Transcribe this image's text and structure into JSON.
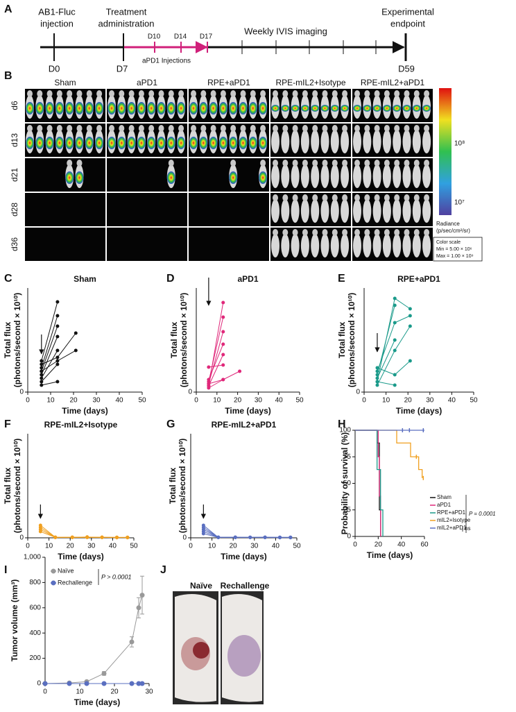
{
  "timeline": {
    "label": "A",
    "injection": [
      "AB1-Fluc",
      "injection"
    ],
    "treatment": [
      "Treatment",
      "administration"
    ],
    "d10": "D10",
    "d14": "D14",
    "d17": "D17",
    "injections": "aPD1 Injections",
    "imaging": "Weekly IVIS imaging",
    "endpoint": [
      "Experimental",
      "endpoint"
    ],
    "d0": "D0",
    "d7": "D7",
    "d59": "D59"
  },
  "imaging": {
    "label": "B",
    "columns": [
      "Sham",
      "aPD1",
      "RPE+aPD1",
      "RPE-mIL2+Isotype",
      "RPE-mIL2+aPD1"
    ],
    "rows": [
      "d6",
      "d13",
      "d21",
      "d28",
      "d36"
    ],
    "colorbar_ticks": [
      "10⁸",
      "10⁷"
    ],
    "radiance": [
      "Radiance",
      "(p/sec/cm²/sr)"
    ],
    "color_scale": [
      "Color scale",
      "Min = 5.00 × 10⁶",
      "Max = 1.00 × 10⁹"
    ]
  },
  "chart_data": [
    {
      "label": "C",
      "type": "line",
      "title": "Sham",
      "ylabel": [
        "Total flux",
        "(photons/second × 10¹⁰)"
      ],
      "xlabel": "Time (days)",
      "x": [
        6,
        13,
        21
      ],
      "xlim": [
        0,
        50
      ],
      "xticks": [
        0,
        10,
        20,
        30,
        40,
        50
      ],
      "ylim": [
        0,
        3
      ],
      "yticks": [
        0
      ],
      "arrow_x": 6,
      "series": [
        {
          "color": "#111111",
          "values": [
            0.2,
            0.3,
            null
          ]
        },
        {
          "color": "#111111",
          "values": [
            0.3,
            0.8,
            null
          ]
        },
        {
          "color": "#111111",
          "values": [
            0.4,
            1.2,
            null
          ]
        },
        {
          "color": "#111111",
          "values": [
            0.5,
            1.6,
            null
          ]
        },
        {
          "color": "#111111",
          "values": [
            0.6,
            1.9,
            null
          ]
        },
        {
          "color": "#111111",
          "values": [
            0.7,
            2.2,
            null
          ]
        },
        {
          "color": "#111111",
          "values": [
            0.9,
            2.6,
            null
          ]
        },
        {
          "color": "#111111",
          "values": [
            0.8,
            1.0,
            1.7
          ]
        },
        {
          "color": "#111111",
          "values": [
            0.6,
            0.9,
            1.2
          ]
        }
      ]
    },
    {
      "label": "D",
      "type": "line",
      "title": "aPD1",
      "ylabel": [
        "Total flux",
        "(photons/second  × 10¹⁰)"
      ],
      "xlabel": "Time (days)",
      "x": [
        6,
        13,
        21
      ],
      "xlim": [
        0,
        50
      ],
      "xticks": [
        0,
        10,
        20,
        30,
        40,
        50
      ],
      "ylim": [
        0,
        5
      ],
      "yticks": [
        0
      ],
      "arrow_x": 6,
      "series": [
        {
          "color": "#e0287a",
          "values": [
            0.3,
            4.3,
            null
          ]
        },
        {
          "color": "#e0287a",
          "values": [
            0.5,
            3.6,
            null
          ]
        },
        {
          "color": "#e0287a",
          "values": [
            0.4,
            2.9,
            null
          ]
        },
        {
          "color": "#e0287a",
          "values": [
            0.6,
            2.3,
            null
          ]
        },
        {
          "color": "#e0287a",
          "values": [
            0.3,
            1.8,
            null
          ]
        },
        {
          "color": "#e0287a",
          "values": [
            1.2,
            1.3,
            null
          ]
        },
        {
          "color": "#e0287a",
          "values": [
            0.2,
            0.6,
            null
          ]
        },
        {
          "color": "#e0287a",
          "values": [
            0.4,
            0.6,
            1.0
          ]
        }
      ]
    },
    {
      "label": "E",
      "type": "line",
      "title": "RPE+aPD1",
      "ylabel": [
        "Total flux",
        "(photons/second × 10¹⁰)"
      ],
      "xlabel": "Time (days)",
      "x": [
        6,
        14,
        21
      ],
      "xlim": [
        0,
        50
      ],
      "xticks": [
        0,
        10,
        20,
        30,
        40,
        50
      ],
      "ylim": [
        0,
        3
      ],
      "yticks": [
        0
      ],
      "arrow_x": 6,
      "series": [
        {
          "color": "#1a9a8a",
          "values": [
            0.3,
            2.7,
            2.4
          ]
        },
        {
          "color": "#1a9a8a",
          "values": [
            0.5,
            2.5,
            null
          ]
        },
        {
          "color": "#1a9a8a",
          "values": [
            0.6,
            2.0,
            2.2
          ]
        },
        {
          "color": "#1a9a8a",
          "values": [
            0.4,
            1.5,
            null
          ]
        },
        {
          "color": "#1a9a8a",
          "values": [
            0.2,
            1.2,
            1.9
          ]
        },
        {
          "color": "#1a9a8a",
          "values": [
            0.7,
            0.5,
            0.9
          ]
        },
        {
          "color": "#1a9a8a",
          "values": [
            0.3,
            0.2,
            null
          ]
        }
      ]
    },
    {
      "label": "F",
      "type": "line",
      "title": "RPE-mIL2+Isotype",
      "ylabel": [
        "Total flux",
        "(photons/second  × 10¹⁰)"
      ],
      "xlabel": "Time (days)",
      "x": [
        6,
        13,
        21,
        28,
        35,
        42,
        47
      ],
      "xlim": [
        0,
        50
      ],
      "xticks": [
        0,
        10,
        20,
        30,
        40,
        50
      ],
      "ylim": [
        0,
        5
      ],
      "yticks": [
        0
      ],
      "arrow_x": 6,
      "series": [
        {
          "color": "#f0a020",
          "values": [
            0.6,
            0.03,
            0.02,
            0.04,
            0.02,
            0.02,
            0.02
          ]
        },
        {
          "color": "#f0a020",
          "values": [
            0.5,
            0.02,
            0.03,
            0.02,
            0.03,
            0.02,
            0.02
          ]
        },
        {
          "color": "#f0a020",
          "values": [
            0.4,
            0.02,
            0.02,
            0.03,
            0.02,
            0.01,
            0.02
          ]
        },
        {
          "color": "#f0a020",
          "values": [
            0.3,
            0.02,
            0.02,
            0.02,
            0.02,
            0.02,
            0.01
          ]
        }
      ]
    },
    {
      "label": "G",
      "type": "line",
      "title": "RPE-mIL2+aPD1",
      "ylabel": [
        "Total flux",
        "(photons/second × 10¹⁰)"
      ],
      "xlabel": "Time (days)",
      "x": [
        6,
        13,
        21,
        28,
        35,
        42,
        47
      ],
      "xlim": [
        0,
        50
      ],
      "xticks": [
        0,
        10,
        20,
        30,
        40,
        50
      ],
      "ylim": [
        0,
        5
      ],
      "yticks": [
        0
      ],
      "arrow_x": 6,
      "series": [
        {
          "color": "#5a6fc0",
          "values": [
            0.6,
            0.02,
            0.02,
            0.02,
            0.02,
            0.02,
            0.02
          ]
        },
        {
          "color": "#5a6fc0",
          "values": [
            0.5,
            0.02,
            0.03,
            0.02,
            0.02,
            0.02,
            0.02
          ]
        },
        {
          "color": "#5a6fc0",
          "values": [
            0.4,
            0.03,
            0.02,
            0.02,
            0.03,
            0.02,
            0.01
          ]
        },
        {
          "color": "#5a6fc0",
          "values": [
            0.3,
            0.02,
            0.02,
            0.02,
            0.02,
            0.01,
            0.02
          ]
        },
        {
          "color": "#5a6fc0",
          "values": [
            0.2,
            0.02,
            0.02,
            0.02,
            0.02,
            0.02,
            0.02
          ]
        }
      ]
    },
    {
      "label": "H",
      "type": "step",
      "ylabel": [
        "Probability of survival (%)"
      ],
      "xlabel": "Time (days)",
      "xlim": [
        0,
        60
      ],
      "xticks": [
        0,
        20,
        40,
        60
      ],
      "ylim": [
        0,
        100
      ],
      "yticks": [
        0,
        25,
        50,
        75,
        100
      ],
      "legend": "lower right",
      "p_value": "P = 0.0001",
      "ns": "ns",
      "series": [
        {
          "name": "Sham",
          "color": "#111111",
          "x": [
            0,
            19,
            21,
            22
          ],
          "values": [
            100,
            88,
            25,
            0
          ]
        },
        {
          "name": "aPD1",
          "color": "#e0287a",
          "x": [
            0,
            20,
            21,
            22
          ],
          "values": [
            100,
            75,
            38,
            0
          ]
        },
        {
          "name": "RPE+aPD1",
          "color": "#1a9a8a",
          "x": [
            0,
            19,
            22,
            24
          ],
          "values": [
            100,
            63,
            25,
            0
          ]
        },
        {
          "name": "mIL2+Isotype",
          "color": "#f0a020",
          "x": [
            0,
            36,
            48,
            55,
            58
          ],
          "values": [
            100,
            88,
            75,
            63,
            55
          ],
          "censor_x": [
            53,
            59
          ]
        },
        {
          "name": "mIL2+aPD1",
          "color": "#5a6fc0",
          "x": [
            0,
            60
          ],
          "values": [
            100,
            100
          ],
          "censor_x": [
            41,
            47,
            59
          ]
        }
      ]
    },
    {
      "label": "I",
      "type": "line",
      "ylabel": [
        "Tumor volume (mm³)"
      ],
      "xlabel": "Time (days)",
      "x": [
        0,
        7,
        12,
        17,
        25,
        27,
        28
      ],
      "xlim": [
        0,
        30
      ],
      "xticks": [
        0,
        10,
        20,
        30
      ],
      "ylim": [
        0,
        1000
      ],
      "yticks": [
        0,
        {
          "value": 200,
          "label": "200"
        },
        {
          "value": 400,
          "label": "400"
        },
        {
          "value": 600,
          "label": "600"
        },
        {
          "value": 800,
          "label": "800"
        },
        {
          "value": 1000,
          "label": "1,000"
        }
      ],
      "legend": "upper left",
      "p_value": "P > 0.0001",
      "series": [
        {
          "name": "Naïve",
          "color": "#999999",
          "values": [
            0,
            5,
            15,
            80,
            330,
            600,
            700
          ],
          "errors": [
            0,
            3,
            5,
            15,
            40,
            80,
            150
          ]
        },
        {
          "name": "Rechallenge",
          "color": "#5a6fc0",
          "values": [
            0,
            0,
            0,
            0,
            0,
            0,
            0
          ],
          "errors": [
            0,
            0,
            0,
            0,
            0,
            0,
            0
          ]
        }
      ]
    }
  ],
  "photos": {
    "label": "J",
    "left": "Naïve",
    "right": "Rechallenge"
  }
}
